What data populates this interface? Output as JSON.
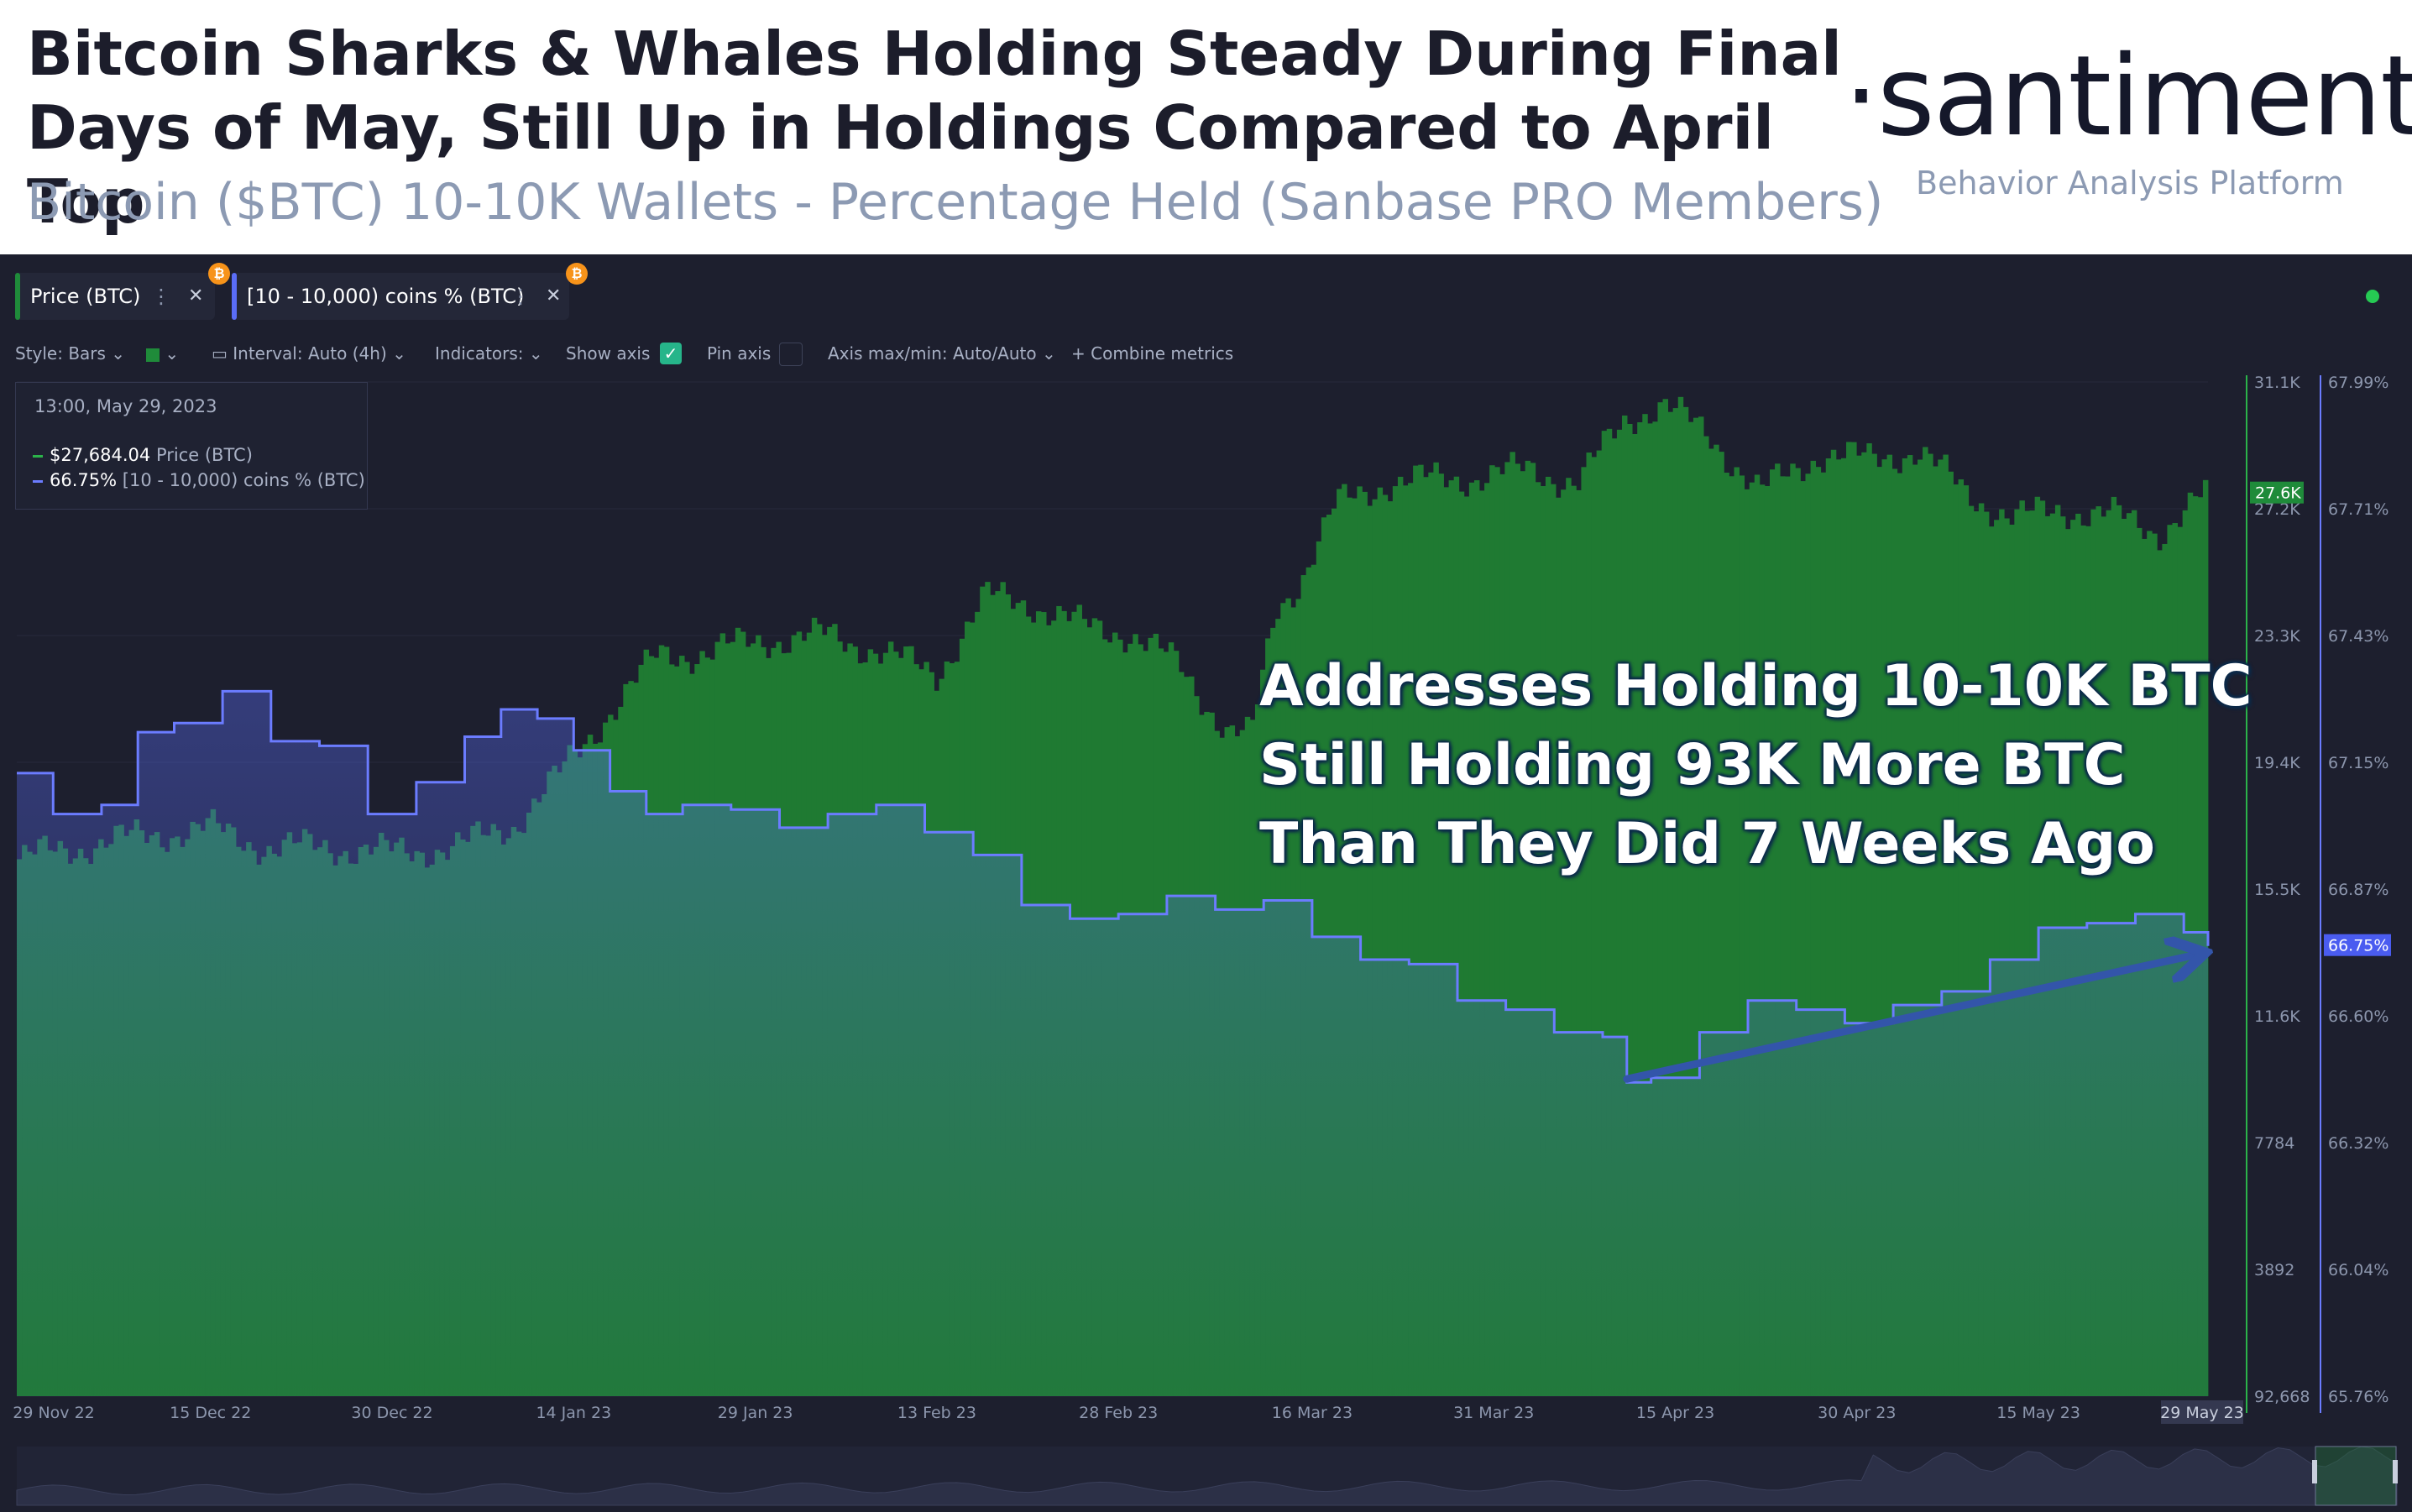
{
  "header": {
    "title": "Bitcoin Sharks & Whales Holding Steady During Final Days of May, Still Up in Holdings Compared to April Top",
    "subtitle": "Bitcoin ($BTC) 10-10K Wallets - Percentage Held (Sanbase PRO Members)",
    "brand": "·santiment·",
    "brand_tagline": "Behavior Analysis Platform"
  },
  "metric_chips": [
    {
      "label": "Price (BTC)",
      "color": "#1f8b3a",
      "badge": "₿"
    },
    {
      "label": "[10 - 10,000) coins % (BTC)",
      "color": "#5a6df7",
      "badge": "₿"
    }
  ],
  "toolbar": {
    "style": "Style: Bars",
    "interval": "Interval: Auto (4h)",
    "indicators": "Indicators:",
    "show_axis": "Show axis",
    "pin_axis": "Pin axis",
    "axis_minmax": "Axis max/min: Auto/Auto",
    "combine": "+  Combine metrics",
    "show_axis_checked": true
  },
  "tooltip": {
    "date": "13:00, May 29, 2023",
    "rows": [
      {
        "value": "$27,684.04",
        "name": "Price (BTC)",
        "color": "#2bb34a"
      },
      {
        "value": "66.75%",
        "name": "[10 - 10,000) coins % (BTC)",
        "color": "#6b7cff"
      }
    ]
  },
  "annotation": {
    "lines": [
      "Addresses Holding 10-10K BTC",
      "Still Holding 93K More BTC",
      "Than They Did 7 Weeks Ago"
    ]
  },
  "colors": {
    "background": "#1d1f2e",
    "price_bars": "#1f7a32",
    "holdings_line": "#6b7cff",
    "arrow": "#3355aa"
  },
  "chart_data": {
    "type": "bar",
    "x_labels": [
      "29 Nov 22",
      "15 Dec 22",
      "30 Dec 22",
      "14 Jan 23",
      "29 Jan 23",
      "13 Feb 23",
      "28 Feb 23",
      "16 Mar 23",
      "31 Mar 23",
      "15 Apr 23",
      "30 Apr 23",
      "15 May 23",
      "29 May 23"
    ],
    "x_highlight": "29 May 23",
    "y_left_ticks": [
      "31.1K",
      "27.2K",
      "23.3K",
      "19.4K",
      "15.5K",
      "11.6K",
      "7784",
      "3892",
      "92,668"
    ],
    "y_right_ticks": [
      "67.99%",
      "67.71%",
      "67.43%",
      "67.15%",
      "66.87%",
      "66.60%",
      "66.32%",
      "66.04%",
      "65.76%"
    ],
    "price_marker": "27.6K",
    "holdings_marker": "66.75%",
    "series": [
      {
        "name": "Price (BTC)",
        "type": "bar",
        "ylim": [
          0,
          31100
        ],
        "x": [
          "2022-11-29",
          "2022-12-05",
          "2022-12-10",
          "2022-12-15",
          "2022-12-20",
          "2022-12-25",
          "2022-12-30",
          "2023-01-05",
          "2023-01-09",
          "2023-01-13",
          "2023-01-17",
          "2023-01-21",
          "2023-01-25",
          "2023-01-30",
          "2023-02-04",
          "2023-02-08",
          "2023-02-13",
          "2023-02-17",
          "2023-02-21",
          "2023-02-25",
          "2023-03-01",
          "2023-03-05",
          "2023-03-09",
          "2023-03-11",
          "2023-03-13",
          "2023-03-15",
          "2023-03-18",
          "2023-03-22",
          "2023-03-26",
          "2023-03-30",
          "2023-04-03",
          "2023-04-07",
          "2023-04-11",
          "2023-04-14",
          "2023-04-18",
          "2023-04-22",
          "2023-04-27",
          "2023-05-01",
          "2023-05-05",
          "2023-05-09",
          "2023-05-13",
          "2023-05-17",
          "2023-05-21",
          "2023-05-25",
          "2023-05-29"
        ],
        "values": [
          16450,
          16900,
          17200,
          17400,
          16800,
          16850,
          16650,
          16900,
          17500,
          19100,
          21000,
          22700,
          22800,
          23200,
          23300,
          22900,
          22100,
          24500,
          24300,
          23600,
          23400,
          22400,
          20400,
          20200,
          24100,
          25000,
          27300,
          28000,
          28100,
          28200,
          28400,
          28000,
          30000,
          30400,
          29400,
          27700,
          28900,
          28700,
          29000,
          27700,
          26900,
          27200,
          27000,
          26500,
          27684
        ]
      },
      {
        "name": "[10 - 10,000) coins % (BTC)",
        "type": "line",
        "ylim": [
          65.76,
          67.99
        ],
        "x": [
          "2022-11-29",
          "2022-12-02",
          "2022-12-06",
          "2022-12-09",
          "2022-12-12",
          "2022-12-16",
          "2022-12-20",
          "2022-12-24",
          "2022-12-28",
          "2023-01-01",
          "2023-01-05",
          "2023-01-08",
          "2023-01-11",
          "2023-01-14",
          "2023-01-17",
          "2023-01-20",
          "2023-01-23",
          "2023-01-27",
          "2023-01-31",
          "2023-02-04",
          "2023-02-08",
          "2023-02-12",
          "2023-02-16",
          "2023-02-20",
          "2023-02-24",
          "2023-02-28",
          "2023-03-04",
          "2023-03-08",
          "2023-03-12",
          "2023-03-16",
          "2023-03-20",
          "2023-03-24",
          "2023-03-28",
          "2023-04-01",
          "2023-04-05",
          "2023-04-09",
          "2023-04-11",
          "2023-04-13",
          "2023-04-17",
          "2023-04-21",
          "2023-04-25",
          "2023-04-29",
          "2023-05-03",
          "2023-05-07",
          "2023-05-11",
          "2023-05-15",
          "2023-05-19",
          "2023-05-23",
          "2023-05-27",
          "2023-05-29"
        ],
        "values": [
          67.13,
          67.04,
          67.06,
          67.22,
          67.24,
          67.31,
          67.2,
          67.19,
          67.04,
          67.11,
          67.21,
          67.27,
          67.25,
          67.18,
          67.09,
          67.04,
          67.06,
          67.05,
          67.01,
          67.04,
          67.06,
          67.0,
          66.95,
          66.84,
          66.81,
          66.82,
          66.86,
          66.83,
          66.85,
          66.77,
          66.72,
          66.71,
          66.63,
          66.61,
          66.56,
          66.55,
          66.45,
          66.46,
          66.56,
          66.63,
          66.61,
          66.58,
          66.62,
          66.65,
          66.72,
          66.79,
          66.8,
          66.82,
          66.78,
          66.75
        ]
      }
    ]
  }
}
